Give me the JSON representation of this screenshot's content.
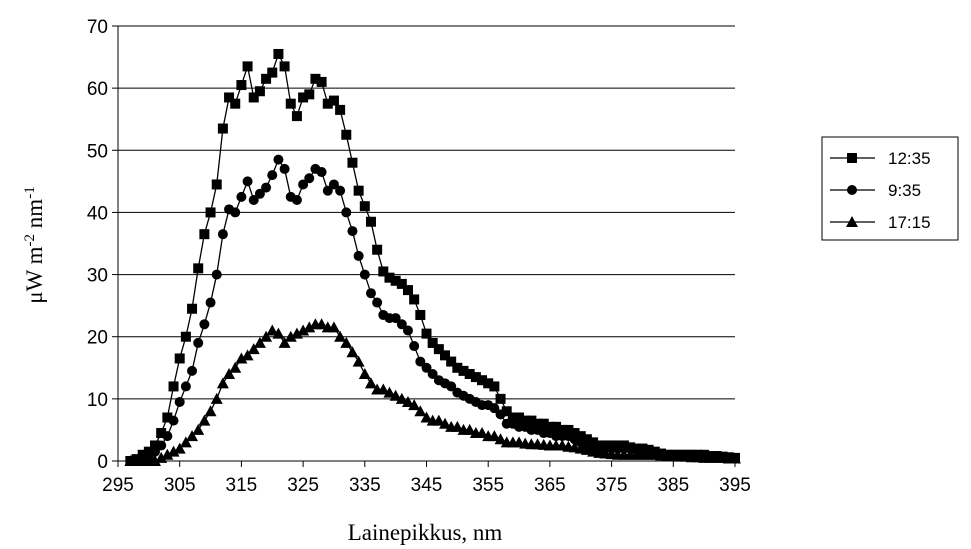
{
  "chart_data": {
    "type": "line",
    "x_label": "Lainepikkus, nm",
    "y_label_parts": [
      "μW m",
      "-2",
      " nm",
      "-1"
    ],
    "xlim": [
      295,
      395
    ],
    "xticks": [
      295,
      305,
      315,
      325,
      335,
      345,
      355,
      365,
      375,
      385,
      395
    ],
    "ylim": [
      0,
      70
    ],
    "yticks": [
      0,
      10,
      20,
      30,
      40,
      50,
      60,
      70
    ],
    "grid": true,
    "x": [
      297,
      298,
      299,
      300,
      301,
      302,
      303,
      304,
      305,
      306,
      307,
      308,
      309,
      310,
      311,
      312,
      313,
      314,
      315,
      316,
      317,
      318,
      319,
      320,
      321,
      322,
      323,
      324,
      325,
      326,
      327,
      328,
      329,
      330,
      331,
      332,
      333,
      334,
      335,
      336,
      337,
      338,
      339,
      340,
      341,
      342,
      343,
      344,
      345,
      346,
      347,
      348,
      349,
      350,
      351,
      352,
      353,
      354,
      355,
      356,
      357,
      358,
      359,
      360,
      361,
      362,
      363,
      364,
      365,
      366,
      367,
      368,
      369,
      370,
      371,
      372,
      373,
      374,
      375,
      376,
      377,
      378,
      379,
      380,
      381,
      382,
      383,
      384,
      385,
      386,
      387,
      388,
      389,
      390,
      391,
      392,
      393,
      394,
      395
    ],
    "series": [
      {
        "name": "12:35",
        "color": "#000000",
        "marker": "square",
        "values": [
          0,
          0.3,
          1,
          1.5,
          2.5,
          4.5,
          7,
          12,
          16.5,
          20,
          24.5,
          31,
          36.5,
          40,
          44.5,
          53.5,
          58.5,
          57.5,
          60.5,
          63.5,
          58.5,
          59.5,
          61.5,
          62.5,
          65.5,
          63.5,
          57.5,
          55.5,
          58.5,
          59,
          61.5,
          61,
          57.5,
          58,
          56.5,
          52.5,
          48,
          43.5,
          41,
          38.5,
          34,
          30.5,
          29.5,
          29,
          28.5,
          27.5,
          26,
          23.5,
          20.5,
          19,
          18,
          17,
          16,
          15,
          14.5,
          14,
          13.5,
          13,
          12.5,
          12,
          10,
          8,
          7,
          7,
          6.5,
          6.5,
          6,
          6,
          5.5,
          5.5,
          5,
          5,
          4.5,
          4,
          3.5,
          3,
          2.5,
          2.5,
          2.5,
          2.5,
          2.5,
          2.2,
          2,
          2,
          1.8,
          1.5,
          1.2,
          1,
          1,
          1,
          1,
          1,
          1,
          1,
          0.8,
          0.8,
          0.7,
          0.6,
          0.5
        ]
      },
      {
        "name": "9:35",
        "color": "#000000",
        "marker": "circle",
        "values": [
          0,
          0,
          0,
          0.5,
          1.5,
          2.5,
          4,
          6.5,
          9.5,
          12,
          14.5,
          19,
          22,
          25.5,
          30,
          36.5,
          40.5,
          40,
          42.5,
          45,
          42,
          43,
          44,
          46,
          48.5,
          47,
          42.5,
          42,
          44.5,
          45.5,
          47,
          46.5,
          43.5,
          44.5,
          43.5,
          40,
          37,
          33,
          30,
          27,
          25.5,
          23.5,
          23,
          23,
          22,
          21,
          18.5,
          16,
          15,
          14,
          13,
          12.5,
          12,
          11,
          10.5,
          10,
          9.5,
          9,
          9,
          8.5,
          7.5,
          6,
          6,
          5.5,
          5.5,
          5,
          5,
          4.5,
          4.5,
          4,
          4,
          4,
          3.5,
          3,
          2.5,
          2,
          2,
          2,
          2,
          2,
          2,
          2,
          1.8,
          1.5,
          1.5,
          1.2,
          1,
          1,
          1,
          1,
          1,
          1,
          0.8,
          0.8,
          0.7,
          0.6,
          0.5,
          0.5,
          0.5
        ]
      },
      {
        "name": "17:15",
        "color": "#000000",
        "marker": "triangle",
        "values": [
          0,
          0,
          0,
          0,
          0,
          0.5,
          1,
          1.5,
          2,
          3,
          4,
          5,
          6.5,
          8,
          10,
          12.5,
          14,
          15,
          16.5,
          17,
          18,
          19,
          20,
          21,
          20.5,
          19,
          20,
          20.5,
          21,
          21.5,
          22,
          22,
          21.5,
          21.5,
          20,
          19,
          17.5,
          16,
          14,
          12.5,
          11.5,
          11.5,
          11,
          10.5,
          10,
          9.5,
          9,
          8,
          7,
          6.5,
          6.5,
          6,
          5.5,
          5.5,
          5,
          5,
          4.5,
          4.5,
          4,
          4,
          3.5,
          3,
          3,
          3,
          2.8,
          2.7,
          2.7,
          2.6,
          2.5,
          2.5,
          2.5,
          2.3,
          2.2,
          2,
          1.8,
          1.5,
          1.3,
          1.2,
          1.1,
          1,
          1,
          1,
          1,
          1,
          1,
          1,
          0.9,
          0.8,
          0.8,
          0.7,
          0.7,
          0.6,
          0.6,
          0.5,
          0.5,
          0.5,
          0.5,
          0.4,
          0.4
        ]
      }
    ]
  }
}
